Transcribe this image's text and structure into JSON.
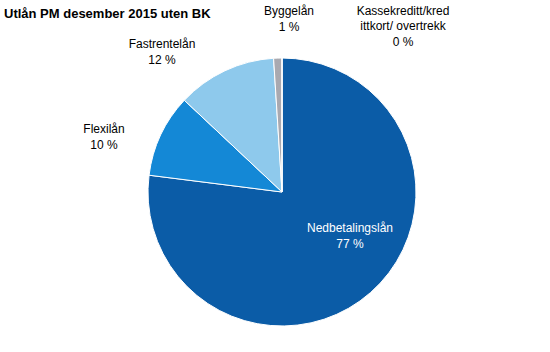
{
  "chart_data": {
    "type": "pie",
    "title": "Utlån PM desember 2015 uten BK",
    "categories": [
      "Nedbetalingslån",
      "Flexilån",
      "Fastrentelån",
      "Byggelån",
      "Kassekreditt/kredittkort/ overtrekk"
    ],
    "values": [
      77,
      10,
      12,
      1,
      0
    ],
    "value_labels": [
      "77 %",
      "10 %",
      "12 %",
      "1 %",
      "0 %"
    ],
    "colors": [
      "#0b5ca7",
      "#1488d6",
      "#8ec9ec",
      "#a9a9b0",
      "#c8c8c8"
    ],
    "data_labels": true
  }
}
